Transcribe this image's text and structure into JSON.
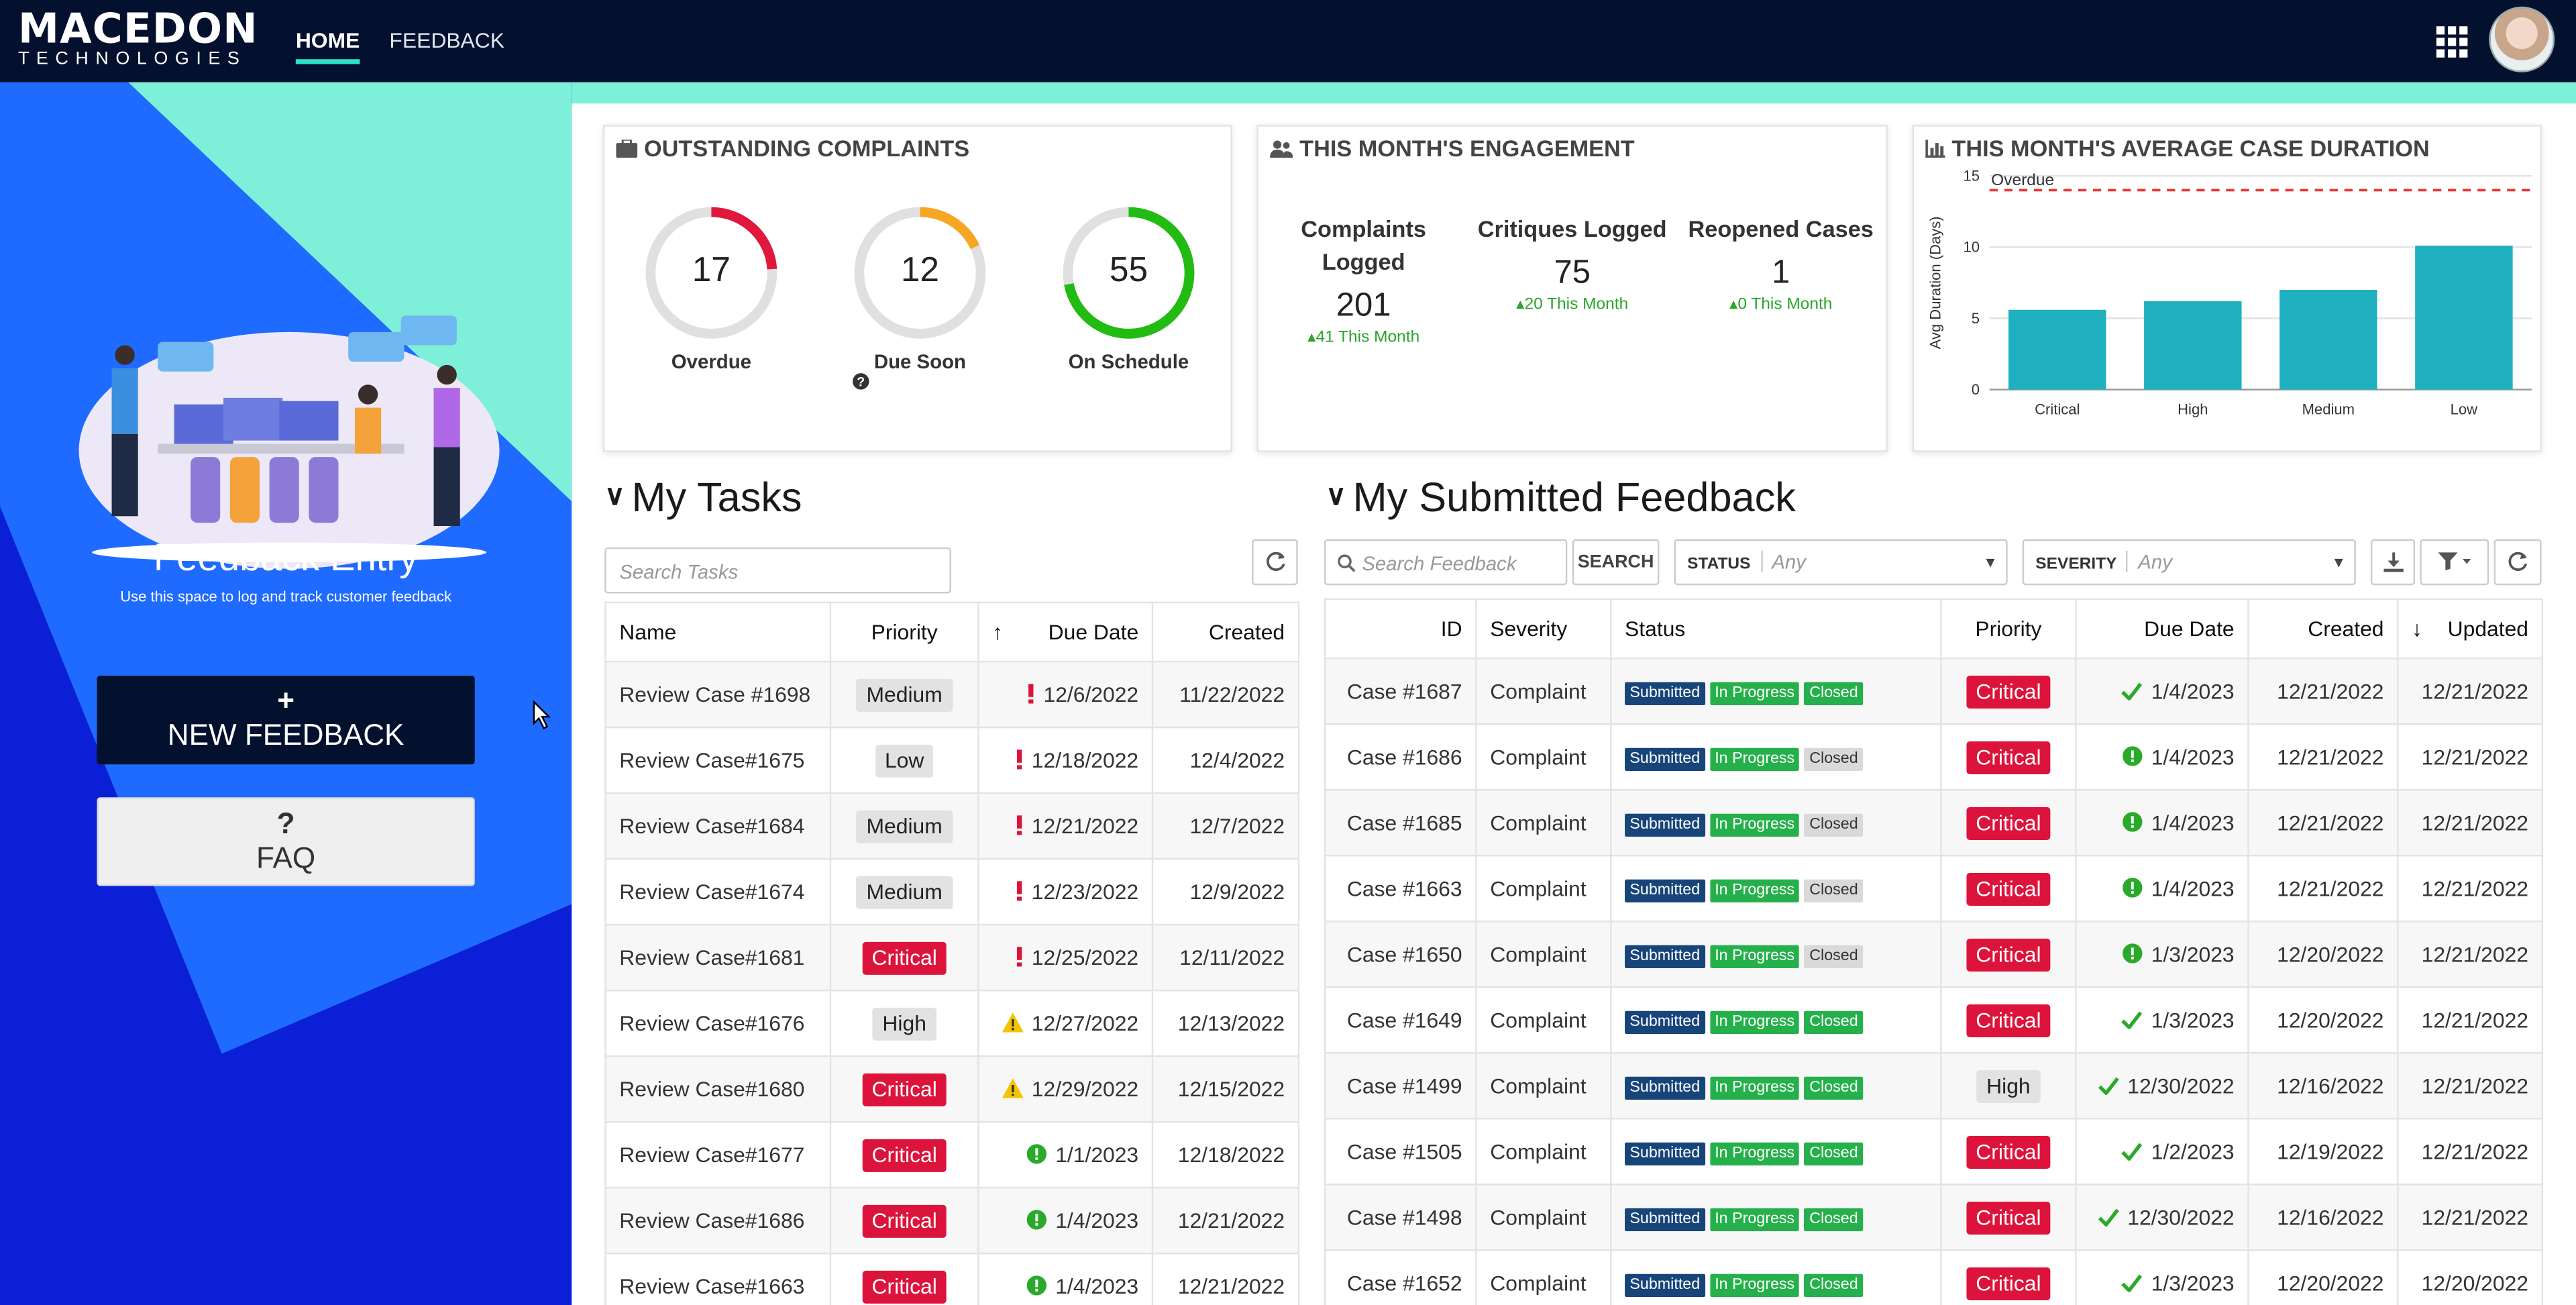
{
  "header": {
    "logo_line1": "MACEDON",
    "logo_line2": "TECHNOLOGIES",
    "nav": [
      {
        "label": "HOME",
        "active": true
      },
      {
        "label": "FEEDBACK",
        "active": false
      }
    ]
  },
  "sidebar": {
    "title": "Feedback Entry",
    "subtitle": "Use this space to log and track customer feedback",
    "new_button": {
      "symbol": "+",
      "label": "NEW FEEDBACK"
    },
    "faq_button": {
      "symbol": "?",
      "label": "FAQ"
    }
  },
  "outstanding": {
    "title": "OUTSTANDING COMPLAINTS",
    "items": [
      {
        "value": "17",
        "label": "Overdue",
        "color": "#e0193c",
        "fraction": 0.24
      },
      {
        "value": "12",
        "label": "Due Soon",
        "color": "#f5a623",
        "fraction": 0.18
      },
      {
        "value": "55",
        "label": "On Schedule",
        "color": "#22bb11",
        "fraction": 0.72
      }
    ]
  },
  "engagement": {
    "title": "THIS MONTH'S ENGAGEMENT",
    "items": [
      {
        "title": "Complaints Logged",
        "value": "201",
        "delta": "41 This Month"
      },
      {
        "title": "Critiques Logged",
        "value": "75",
        "delta": "20 This Month"
      },
      {
        "title": "Reopened Cases",
        "value": "1",
        "delta": "0 This Month"
      }
    ]
  },
  "duration_chart": {
    "title": "THIS MONTH'S AVERAGE CASE DURATION"
  },
  "chart_data": {
    "type": "bar",
    "title": "THIS MONTH'S AVERAGE CASE DURATION",
    "categories": [
      "Critical",
      "High",
      "Medium",
      "Low"
    ],
    "values": [
      5.6,
      6.2,
      7.0,
      10.1
    ],
    "ylabel": "Avg Duration (Days)",
    "ylim": [
      0,
      15
    ],
    "yticks": [
      "0",
      "5",
      "10",
      "15"
    ],
    "threshold": {
      "value": 14,
      "label": "Overdue",
      "color": "#e53935"
    },
    "bar_color": "#1fb0c0",
    "grid": true
  },
  "tasks": {
    "title": "My Tasks",
    "search_placeholder": "Search Tasks",
    "columns": [
      "Name",
      "Priority",
      "Due Date",
      "Created"
    ],
    "rows": [
      {
        "name": "Review Case #1698",
        "priority": "Medium",
        "due_icon": "exclamation",
        "due": "12/6/2022",
        "created": "11/22/2022"
      },
      {
        "name": "Review Case#1675",
        "priority": "Low",
        "due_icon": "exclamation",
        "due": "12/18/2022",
        "created": "12/4/2022"
      },
      {
        "name": "Review Case#1684",
        "priority": "Medium",
        "due_icon": "exclamation",
        "due": "12/21/2022",
        "created": "12/7/2022"
      },
      {
        "name": "Review Case#1674",
        "priority": "Medium",
        "due_icon": "exclamation",
        "due": "12/23/2022",
        "created": "12/9/2022"
      },
      {
        "name": "Review Case#1681",
        "priority": "Critical",
        "due_icon": "exclamation",
        "due": "12/25/2022",
        "created": "12/11/2022"
      },
      {
        "name": "Review Case#1676",
        "priority": "High",
        "due_icon": "warning",
        "due": "12/27/2022",
        "created": "12/13/2022"
      },
      {
        "name": "Review Case#1680",
        "priority": "Critical",
        "due_icon": "warning",
        "due": "12/29/2022",
        "created": "12/15/2022"
      },
      {
        "name": "Review Case#1677",
        "priority": "Critical",
        "due_icon": "info",
        "due": "1/1/2023",
        "created": "12/18/2022"
      },
      {
        "name": "Review Case#1686",
        "priority": "Critical",
        "due_icon": "info",
        "due": "1/4/2023",
        "created": "12/21/2022"
      },
      {
        "name": "Review Case#1663",
        "priority": "Critical",
        "due_icon": "info",
        "due": "1/4/2023",
        "created": "12/21/2022"
      }
    ]
  },
  "feedback": {
    "title": "My Submitted Feedback",
    "search_placeholder": "Search Feedback",
    "search_button": "SEARCH",
    "status_filter": {
      "label": "STATUS",
      "value": "Any"
    },
    "severity_filter": {
      "label": "SEVERITY",
      "value": "Any"
    },
    "columns": [
      "ID",
      "Severity",
      "Status",
      "Priority",
      "Due Date",
      "Created",
      "Updated"
    ],
    "status_labels": [
      "Submitted",
      "In Progress",
      "Closed"
    ],
    "rows": [
      {
        "id": "Case #1687",
        "severity": "Complaint",
        "closed": true,
        "priority": "Critical",
        "due_icon": "check",
        "due": "1/4/2023",
        "created": "12/21/2022",
        "updated": "12/21/2022"
      },
      {
        "id": "Case #1686",
        "severity": "Complaint",
        "closed": false,
        "priority": "Critical",
        "due_icon": "info",
        "due": "1/4/2023",
        "created": "12/21/2022",
        "updated": "12/21/2022"
      },
      {
        "id": "Case #1685",
        "severity": "Complaint",
        "closed": false,
        "priority": "Critical",
        "due_icon": "info",
        "due": "1/4/2023",
        "created": "12/21/2022",
        "updated": "12/21/2022"
      },
      {
        "id": "Case #1663",
        "severity": "Complaint",
        "closed": false,
        "priority": "Critical",
        "due_icon": "info",
        "due": "1/4/2023",
        "created": "12/21/2022",
        "updated": "12/21/2022"
      },
      {
        "id": "Case #1650",
        "severity": "Complaint",
        "closed": false,
        "priority": "Critical",
        "due_icon": "info",
        "due": "1/3/2023",
        "created": "12/20/2022",
        "updated": "12/21/2022"
      },
      {
        "id": "Case #1649",
        "severity": "Complaint",
        "closed": true,
        "priority": "Critical",
        "due_icon": "check",
        "due": "1/3/2023",
        "created": "12/20/2022",
        "updated": "12/21/2022"
      },
      {
        "id": "Case #1499",
        "severity": "Complaint",
        "closed": true,
        "priority": "High",
        "due_icon": "check",
        "due": "12/30/2022",
        "created": "12/16/2022",
        "updated": "12/21/2022"
      },
      {
        "id": "Case #1505",
        "severity": "Complaint",
        "closed": true,
        "priority": "Critical",
        "due_icon": "check",
        "due": "1/2/2023",
        "created": "12/19/2022",
        "updated": "12/21/2022"
      },
      {
        "id": "Case #1498",
        "severity": "Complaint",
        "closed": true,
        "priority": "Critical",
        "due_icon": "check",
        "due": "12/30/2022",
        "created": "12/16/2022",
        "updated": "12/21/2022"
      },
      {
        "id": "Case #1652",
        "severity": "Complaint",
        "closed": true,
        "priority": "Critical",
        "due_icon": "check",
        "due": "1/3/2023",
        "created": "12/20/2022",
        "updated": "12/20/2022"
      }
    ]
  },
  "colors": {
    "navy": "#04112e",
    "accent": "#2fe0c8",
    "critical": "#dc143c",
    "ok": "#26b04b"
  }
}
